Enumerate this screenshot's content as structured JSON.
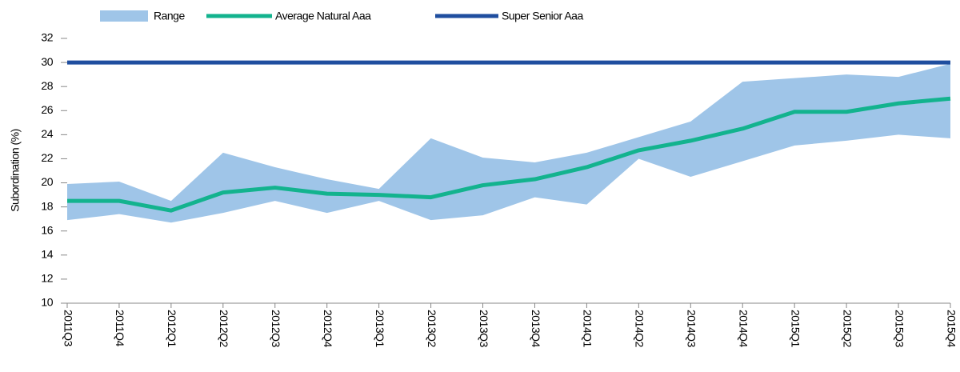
{
  "chart_data": {
    "type": "line",
    "y_label": "Subordination (%)",
    "categories": [
      "2011Q3",
      "2011Q4",
      "2012Q1",
      "2012Q2",
      "2012Q3",
      "2012Q4",
      "2013Q1",
      "2013Q2",
      "2013Q3",
      "2013Q4",
      "2014Q1",
      "2014Q2",
      "2014Q3",
      "2014Q4",
      "2015Q1",
      "2015Q2",
      "2015Q3",
      "2015Q4"
    ],
    "range": {
      "name": "Range",
      "color": "#9fc5e8",
      "low": [
        16.9,
        17.4,
        16.7,
        17.5,
        18.5,
        17.5,
        18.5,
        16.9,
        17.3,
        18.8,
        18.2,
        22.0,
        20.5,
        21.8,
        23.1,
        23.5,
        24.0,
        23.7
      ],
      "high": [
        19.9,
        20.1,
        18.5,
        22.5,
        21.3,
        20.3,
        19.5,
        23.7,
        22.1,
        21.7,
        22.5,
        23.8,
        25.1,
        28.4,
        28.7,
        29.0,
        28.8,
        29.9
      ]
    },
    "series": [
      {
        "name": "Average Natural Aaa",
        "color": "#13b38e",
        "values": [
          18.5,
          18.5,
          17.7,
          19.2,
          19.6,
          19.1,
          19.0,
          18.8,
          19.8,
          20.3,
          21.3,
          22.7,
          23.5,
          24.5,
          25.9,
          25.9,
          26.6,
          27.0
        ]
      },
      {
        "name": "Super Senior Aaa",
        "color": "#1f4e9f",
        "values": [
          30,
          30,
          30,
          30,
          30,
          30,
          30,
          30,
          30,
          30,
          30,
          30,
          30,
          30,
          30,
          30,
          30,
          30
        ]
      }
    ],
    "ylim": [
      10,
      32
    ],
    "yticks": [
      10,
      12,
      14,
      16,
      18,
      20,
      22,
      24,
      26,
      28,
      30,
      32
    ],
    "grid": false
  }
}
